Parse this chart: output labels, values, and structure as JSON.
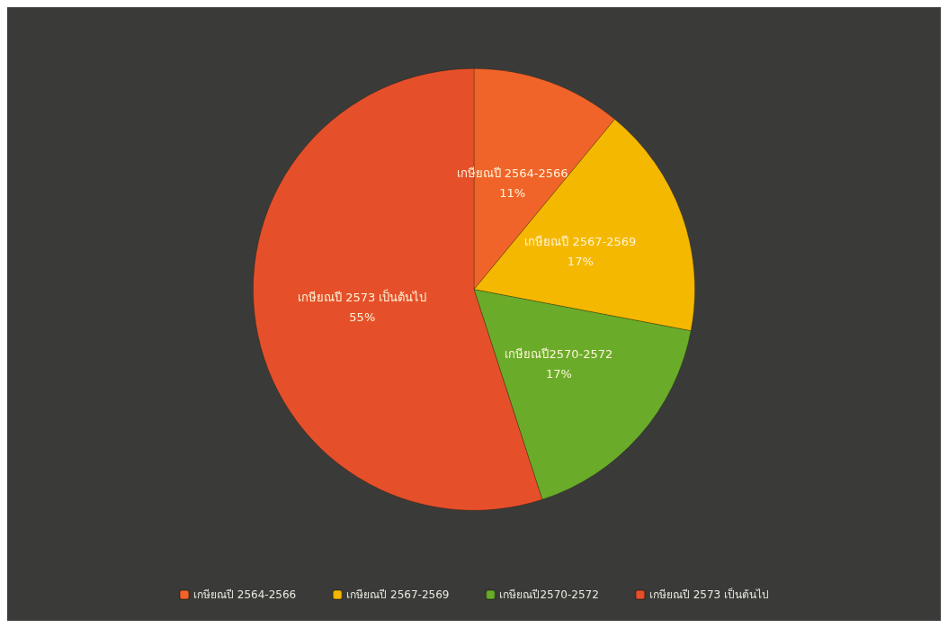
{
  "chart_data": {
    "type": "pie",
    "categories": [
      "เกษียณปี 2564-2566",
      "เกษียณปี 2567-2569",
      "เกษียณปี2570-2572",
      "เกษียณปี 2573 เป็นต้นไป"
    ],
    "values": [
      11,
      17,
      17,
      55
    ],
    "value_labels": [
      "11%",
      "17%",
      "17%",
      "55%"
    ],
    "colors": [
      "#f0642a",
      "#f5b800",
      "#6aac2a",
      "#e5502a"
    ],
    "legend": "bottom"
  }
}
